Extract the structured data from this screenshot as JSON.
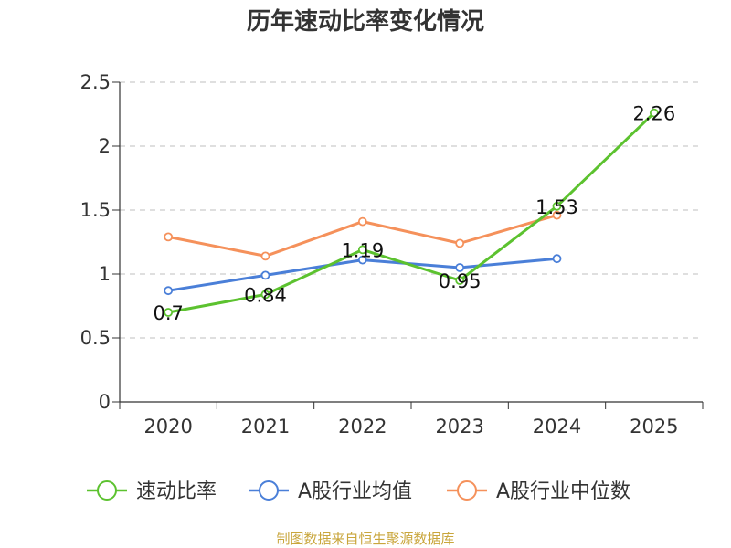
{
  "chart_data": {
    "type": "line",
    "title": "历年速动比率变化情况",
    "categories": [
      "2020",
      "2021",
      "2022",
      "2023",
      "2024",
      "2025"
    ],
    "ylim": [
      0,
      2.5
    ],
    "yticks": [
      "0",
      "0.5",
      "1",
      "1.5",
      "2",
      "2.5"
    ],
    "grid": true,
    "legend_position": "bottom",
    "series": [
      {
        "name": "速动比率",
        "color": "#5cc22f",
        "values": [
          0.7,
          0.84,
          1.19,
          0.95,
          1.53,
          2.26
        ],
        "labels": [
          "0.7",
          "0.84",
          "1.19",
          "0.95",
          "1.53",
          "2.26"
        ]
      },
      {
        "name": "A股行业均值",
        "color": "#4a7fd8",
        "values": [
          0.87,
          0.99,
          1.11,
          1.05,
          1.12,
          null
        ]
      },
      {
        "name": "A股行业中位数",
        "color": "#f5915b",
        "values": [
          1.29,
          1.14,
          1.41,
          1.24,
          1.46,
          null
        ]
      }
    ]
  },
  "source_text": "制图数据来自恒生聚源数据库"
}
